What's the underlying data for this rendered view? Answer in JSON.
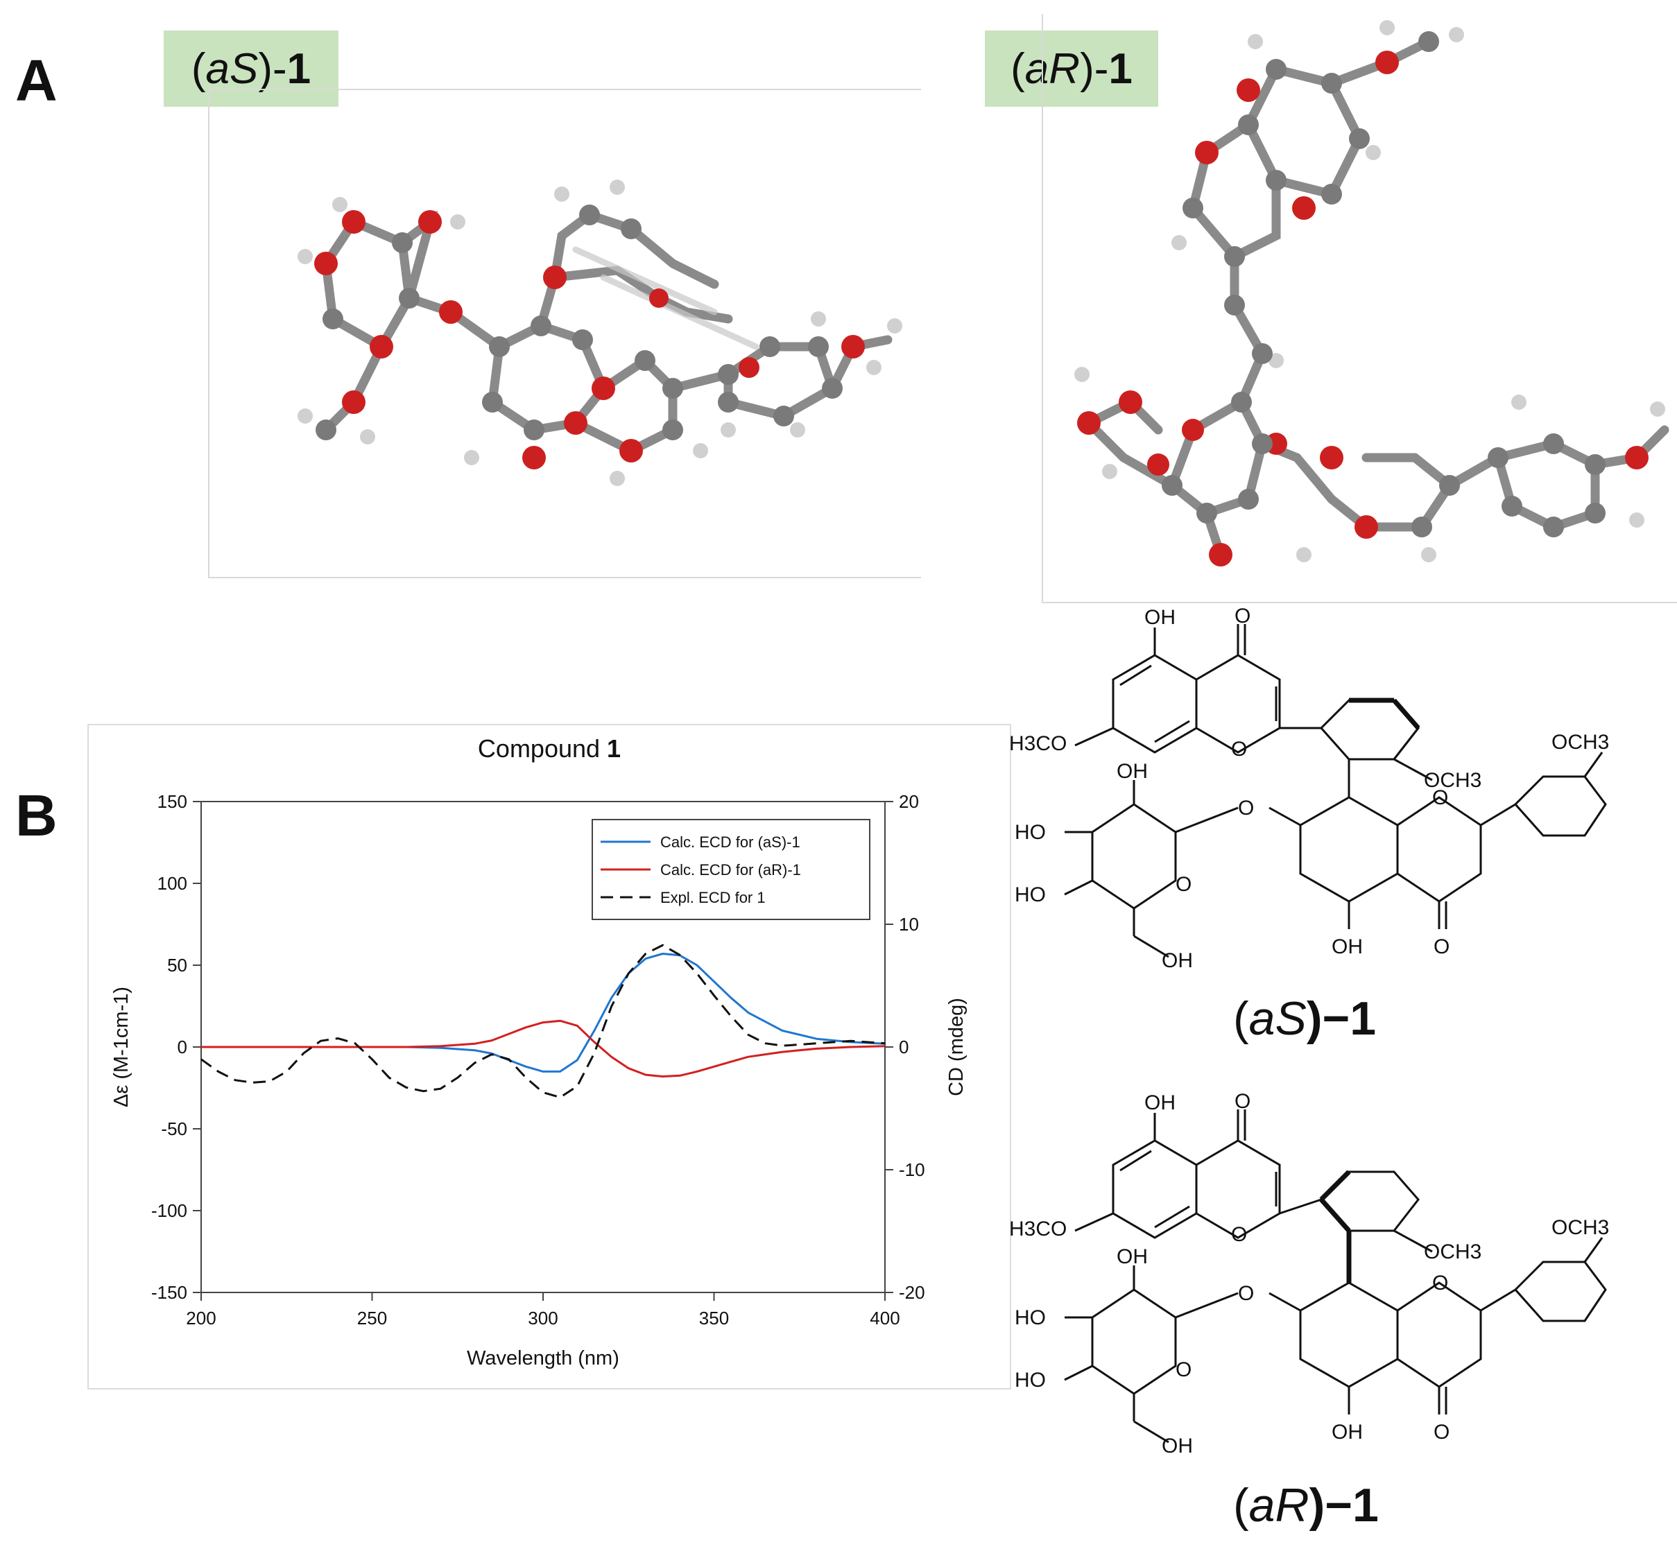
{
  "figure": {
    "panel_a": "A",
    "panel_b": "B",
    "label_as_prefix": "(",
    "label_as_ital": "aS",
    "label_as_mid": ")-",
    "label_as_bold": "1",
    "label_ar_prefix": "(",
    "label_ar_ital": "aR",
    "label_ar_mid": ")-",
    "label_ar_bold": "1",
    "caption_as_prefix": "(",
    "caption_as_ital": "aS",
    "caption_as_mid": ")−1",
    "caption_ar_prefix": "(",
    "caption_ar_ital": "aR",
    "caption_ar_mid": ")−1"
  },
  "structure_labels": {
    "oh": "OH",
    "o": "O",
    "h3co": "H3CO",
    "och3": "OCH3",
    "ho": "HO"
  },
  "chart_data": {
    "type": "line",
    "title": "Compound 1",
    "xlabel": "Wavelength (nm)",
    "ylabel": "Δε (M-1cm-1)",
    "y2label": "CD (mdeg)",
    "xlim": [
      200,
      400
    ],
    "ylim": [
      -150,
      150
    ],
    "y2lim": [
      -20,
      20
    ],
    "xticks": [
      200,
      250,
      300,
      350,
      400
    ],
    "yticks": [
      -150,
      -100,
      -50,
      0,
      50,
      100,
      150
    ],
    "y2ticks": [
      -20,
      -10,
      0,
      10,
      20
    ],
    "grid": false,
    "legend_position": "top-right",
    "series": [
      {
        "name": "Calc. ECD for (aS)-1",
        "axis": "left",
        "color": "#1f77d0",
        "dash": "solid",
        "x": [
          200,
          260,
          270,
          280,
          285,
          290,
          295,
          300,
          305,
          310,
          315,
          320,
          325,
          330,
          335,
          340,
          345,
          350,
          355,
          360,
          370,
          380,
          390,
          400
        ],
        "y": [
          0,
          0,
          -0.5,
          -2,
          -4,
          -8,
          -12,
          -15,
          -15,
          -8,
          10,
          30,
          45,
          54,
          57,
          56,
          50,
          40,
          30,
          21,
          10,
          5,
          3,
          2
        ]
      },
      {
        "name": "Calc. ECD for (aR)-1",
        "axis": "left",
        "color": "#d22020",
        "dash": "solid",
        "x": [
          200,
          260,
          270,
          280,
          285,
          290,
          295,
          300,
          305,
          310,
          315,
          320,
          325,
          330,
          335,
          340,
          345,
          350,
          355,
          360,
          370,
          380,
          390,
          400
        ],
        "y": [
          0,
          0,
          0.5,
          2,
          4,
          8,
          12,
          15,
          16,
          13,
          3,
          -6,
          -13,
          -17,
          -18,
          -17.5,
          -15,
          -12,
          -9,
          -6,
          -3,
          -1,
          0,
          0.5
        ]
      },
      {
        "name": "Expl. ECD for 1",
        "axis": "right",
        "color": "#111111",
        "dash": "dashed",
        "x": [
          200,
          205,
          210,
          215,
          220,
          225,
          230,
          235,
          240,
          245,
          250,
          255,
          260,
          265,
          270,
          275,
          280,
          285,
          290,
          295,
          300,
          305,
          310,
          315,
          320,
          325,
          330,
          335,
          340,
          345,
          350,
          355,
          360,
          365,
          370,
          375,
          380,
          390,
          400
        ],
        "y": [
          -1,
          -2,
          -2.7,
          -2.9,
          -2.8,
          -2,
          -0.5,
          0.5,
          0.7,
          0.3,
          -1,
          -2.5,
          -3.3,
          -3.6,
          -3.4,
          -2.5,
          -1.3,
          -0.6,
          -1,
          -2.5,
          -3.7,
          -4.1,
          -3.2,
          -0.5,
          3.3,
          6,
          7.6,
          8.3,
          7.5,
          6,
          4.2,
          2.5,
          1,
          0.3,
          0.1,
          0.2,
          0.3,
          0.5,
          0.3
        ]
      }
    ]
  }
}
